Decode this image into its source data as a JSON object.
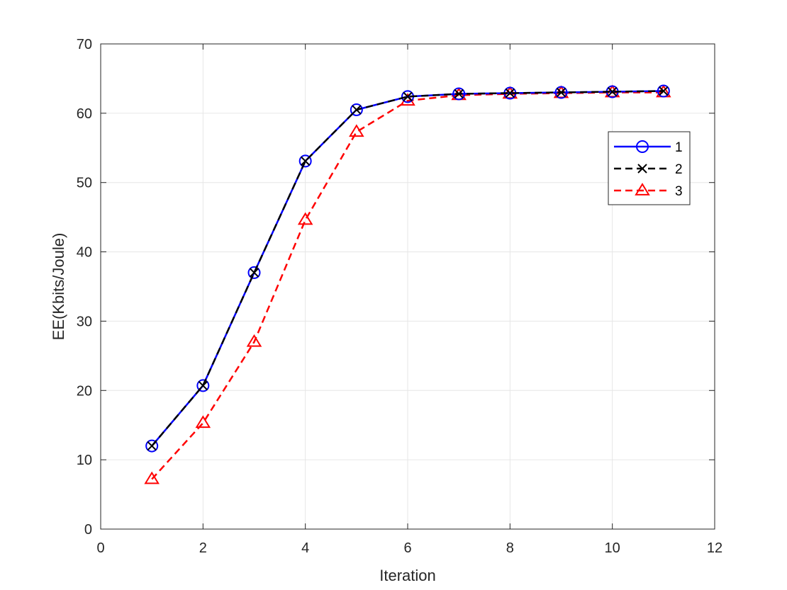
{
  "chart_data": {
    "type": "line",
    "xlabel": "Iteration",
    "ylabel": "EE(Kbits/Joule)",
    "xlim": [
      0,
      12
    ],
    "ylim": [
      0,
      70
    ],
    "xticks": [
      0,
      2,
      4,
      6,
      8,
      10,
      12
    ],
    "yticks": [
      0,
      10,
      20,
      30,
      40,
      50,
      60,
      70
    ],
    "grid": true,
    "legend_position": "upper-right",
    "x": [
      1,
      2,
      3,
      4,
      5,
      6,
      7,
      8,
      9,
      10,
      11
    ],
    "series": [
      {
        "name": "1",
        "color": "#0000ff",
        "dash": "solid",
        "marker": "circle",
        "values": [
          12.0,
          20.7,
          37.0,
          53.1,
          60.5,
          62.4,
          62.8,
          62.9,
          63.0,
          63.1,
          63.2
        ]
      },
      {
        "name": "2",
        "color": "#000000",
        "dash": "dashed",
        "marker": "x",
        "values": [
          12.0,
          20.7,
          37.0,
          53.1,
          60.5,
          62.4,
          62.8,
          62.9,
          63.0,
          63.1,
          63.2
        ]
      },
      {
        "name": "3",
        "color": "#ff0000",
        "dash": "dashed",
        "marker": "triangle",
        "values": [
          7.2,
          15.3,
          27.0,
          44.6,
          57.3,
          61.8,
          62.6,
          62.8,
          62.9,
          63.0,
          63.0
        ]
      }
    ]
  }
}
